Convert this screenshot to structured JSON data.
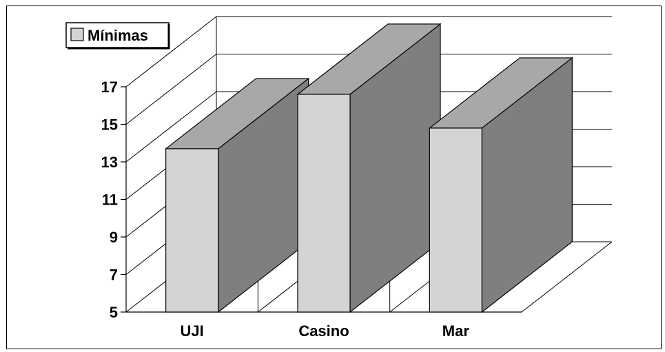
{
  "chart_data": {
    "type": "bar",
    "categories": [
      "UJI",
      "Casino",
      "Mar"
    ],
    "series": [
      {
        "name": "Mínimas",
        "values": [
          13.7,
          16.6,
          14.8
        ]
      }
    ],
    "ylim": [
      5,
      17
    ],
    "yticks": [
      "5",
      "7",
      "9",
      "11",
      "13",
      "15",
      "17"
    ],
    "grid": true,
    "legend_position": "top-left",
    "style": "3d-bar",
    "colors": {
      "bar_front": "#d4d4d4",
      "bar_side": "#7f7f7f",
      "bar_top": "#a8a8a8",
      "lines": "#000000"
    }
  }
}
